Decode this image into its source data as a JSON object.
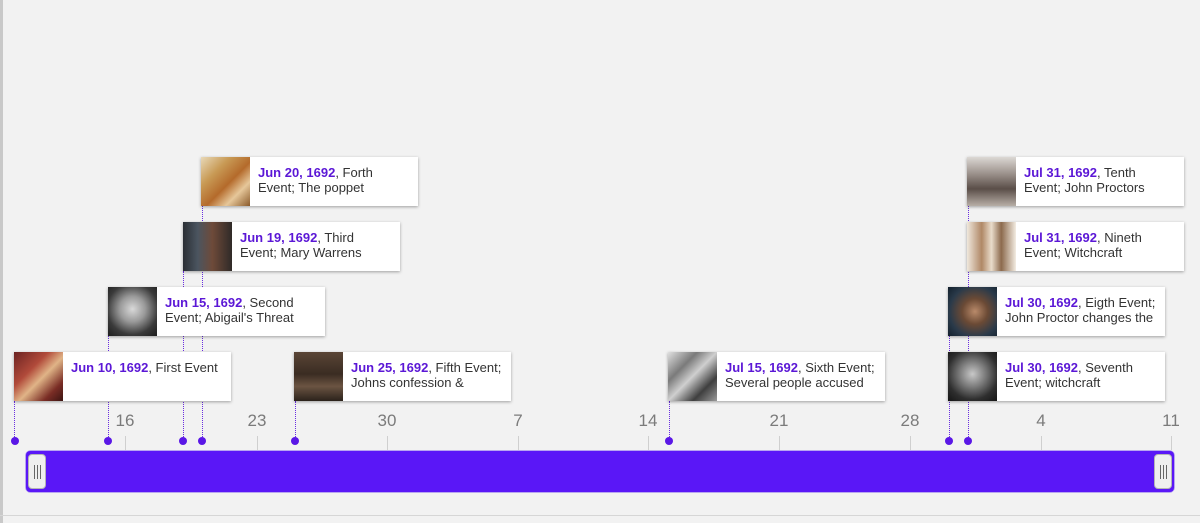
{
  "colors": {
    "accent": "#5a17f7",
    "date_text": "#5b17d6",
    "tick_text": "#7b7b7b"
  },
  "axis": {
    "ticks": [
      "16",
      "23",
      "30",
      "7",
      "14",
      "21",
      "28",
      "4",
      "11"
    ]
  },
  "events": [
    {
      "date": "Jun 10, 1692",
      "rest": ", First Event",
      "line2": "",
      "image": "painted-witch-scene-thumbnail"
    },
    {
      "date": "Jun 15, 1692",
      "rest": ", Second",
      "line2": "Event; Abigail's Threat",
      "image": "abigail-portrait-thumbnail"
    },
    {
      "date": "Jun 19, 1692",
      "rest": ", Third",
      "line2": "Event; Mary Warrens",
      "image": "mary-warren-scene-thumbnail"
    },
    {
      "date": "Jun 20, 1692",
      "rest": ", Forth",
      "line2": "Event; The poppet",
      "image": "poppet-painting-thumbnail"
    },
    {
      "date": "Jun 25, 1692",
      "rest": ", Fifth Event;",
      "line2": "Johns confession &",
      "image": "confession-scene-thumbnail"
    },
    {
      "date": "Jul 15, 1692",
      "rest": ", Sixth Event;",
      "line2": "Several people accused",
      "image": "courtroom-crowd-thumbnail"
    },
    {
      "date": "Jul 30, 1692",
      "rest": ", Seventh",
      "line2": "Event; witchcraft",
      "image": "john-proctor-portrait-thumbnail"
    },
    {
      "date": "Jul 30, 1692",
      "rest": ", Eigth Event;",
      "line2": "John Proctor changes the",
      "image": "john-proctor-closeup-thumbnail"
    },
    {
      "date": "Jul 31, 1692",
      "rest": ", Nineth",
      "line2": "Event; Witchcraft",
      "image": "accused-women-thumbnail"
    },
    {
      "date": "Jul 31, 1692",
      "rest": ", Tenth",
      "line2": "Event; John Proctors",
      "image": "gallows-scene-thumbnail"
    }
  ]
}
